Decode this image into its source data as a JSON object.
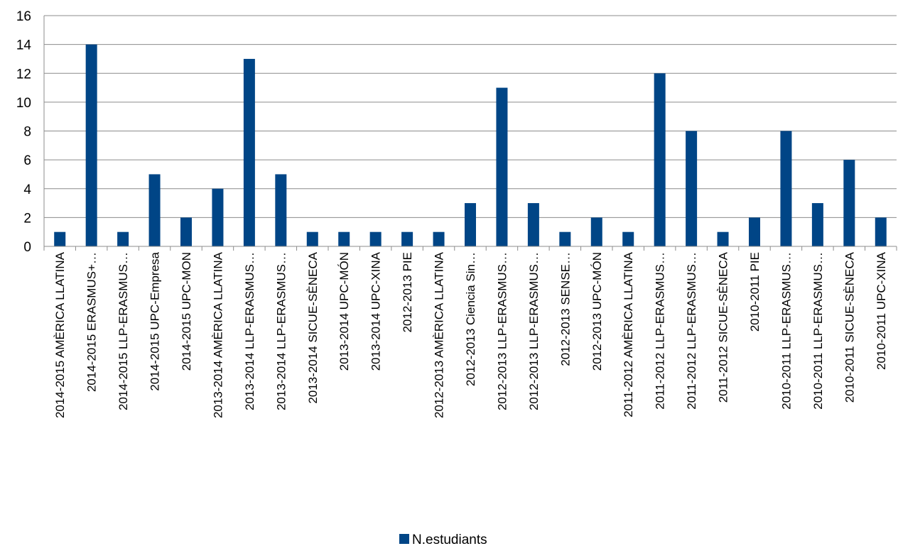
{
  "chart_data": {
    "type": "bar",
    "categories": [
      "2014-2015 AMÈRICA LLATINA",
      "2014-2015 ERASMUS+…",
      "2014-2015 LLP-ERASMUS…",
      "2014-2015 UPC-Empresa",
      "2014-2015 UPC-MON",
      "2013-2014 AMÈRICA LLATINA",
      "2013-2014 LLP-ERASMUS…",
      "2013-2014 LLP-ERASMUS…",
      "2013-2014 SICUE-SÈNECA",
      "2013-2014 UPC-MÓN",
      "2013-2014 UPC-XINA",
      "2012-2013 PIE",
      "2012-2013 AMÈRICA LLATINA",
      "2012-2013 Ciencia Sin…",
      "2012-2013 LLP-ERASMUS…",
      "2012-2013 LLP-ERASMUS…",
      "2012-2013 SENSE…",
      "2012-2013 UPC-MÓN",
      "2011-2012 AMÈRICA LLATINA",
      "2011-2012 LLP-ERASMUS…",
      "2011-2012 LLP-ERASMUS…",
      "2011-2012 SICUE-SÈNECA",
      "2010-2011 PIE",
      "2010-2011 LLP-ERASMUS…",
      "2010-2011 LLP-ERASMUS…",
      "2010-2011 SICUE-SÈNECA",
      "2010-2011 UPC-XINA"
    ],
    "series": [
      {
        "name": "N.estudiants",
        "color": "#004586",
        "values": [
          1,
          14,
          1,
          5,
          2,
          4,
          13,
          5,
          1,
          1,
          1,
          1,
          1,
          3,
          11,
          3,
          1,
          2,
          1,
          12,
          8,
          1,
          2,
          8,
          3,
          6,
          2
        ]
      }
    ],
    "yticks": [
      "0",
      "2",
      "4",
      "6",
      "8",
      "10",
      "12",
      "14",
      "16"
    ],
    "ylim": [
      0,
      16
    ],
    "grid": true,
    "legend_position": "bottom"
  }
}
